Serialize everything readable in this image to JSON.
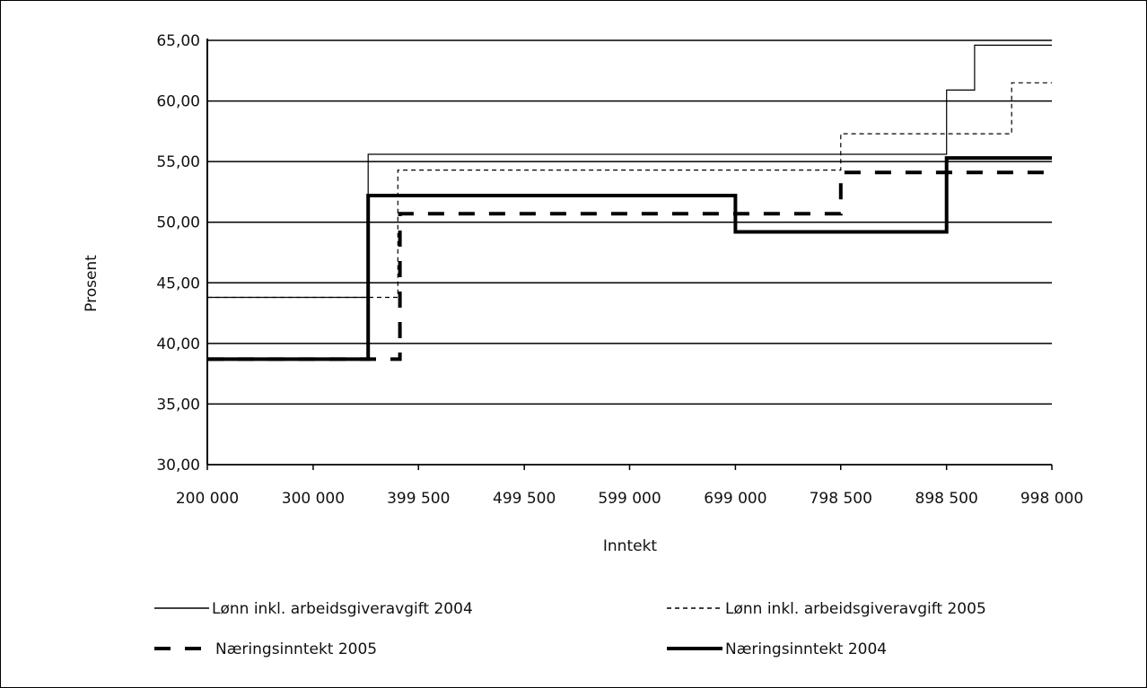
{
  "chart_data": {
    "type": "line",
    "step": true,
    "xlabel": "Inntekt",
    "ylabel": "Prosent",
    "ylim": [
      30,
      65
    ],
    "yticks": [
      "30,00",
      "35,00",
      "40,00",
      "45,00",
      "50,00",
      "55,00",
      "60,00",
      "65,00"
    ],
    "ytick_values": [
      30,
      35,
      40,
      45,
      50,
      55,
      60,
      65
    ],
    "xlim": [
      200000,
      998000
    ],
    "xticks": [
      "200 000",
      "300 000",
      "399 500",
      "499 500",
      "599 000",
      "699 000",
      "798 500",
      "898 500",
      "998 000"
    ],
    "xtick_values": [
      200000,
      300000,
      399500,
      499500,
      599000,
      699000,
      798500,
      898500,
      998000
    ],
    "grid": "horizontal",
    "legend_position": "bottom",
    "series": [
      {
        "name": "Lønn inkl. arbeidsgiveravgift 2004",
        "style": "thin-solid",
        "points": [
          [
            200000,
            43.8
          ],
          [
            352000,
            43.8
          ],
          [
            352000,
            55.6
          ],
          [
            898500,
            55.6
          ],
          [
            898500,
            60.9
          ],
          [
            925000,
            60.9
          ],
          [
            925000,
            64.6
          ],
          [
            998000,
            64.6
          ]
        ]
      },
      {
        "name": "Lønn inkl. arbeidsgiveravgift 2005",
        "style": "thin-dashed",
        "points": [
          [
            200000,
            43.8
          ],
          [
            380000,
            43.8
          ],
          [
            380000,
            54.3
          ],
          [
            798500,
            54.3
          ],
          [
            798500,
            57.3
          ],
          [
            960000,
            57.3
          ],
          [
            960000,
            61.5
          ],
          [
            998000,
            61.5
          ]
        ]
      },
      {
        "name": "Næringsinntekt 2005",
        "style": "thick-dashed",
        "points": [
          [
            200000,
            38.7
          ],
          [
            382000,
            38.7
          ],
          [
            382000,
            50.7
          ],
          [
            798500,
            50.7
          ],
          [
            798500,
            54.1
          ],
          [
            998000,
            54.1
          ]
        ]
      },
      {
        "name": "Næringsinntekt 2004",
        "style": "thick-solid",
        "points": [
          [
            200000,
            38.7
          ],
          [
            352000,
            38.7
          ],
          [
            352000,
            52.2
          ],
          [
            699000,
            52.2
          ],
          [
            699000,
            49.2
          ],
          [
            898500,
            49.2
          ],
          [
            898500,
            55.3
          ],
          [
            998000,
            55.3
          ]
        ]
      }
    ]
  }
}
